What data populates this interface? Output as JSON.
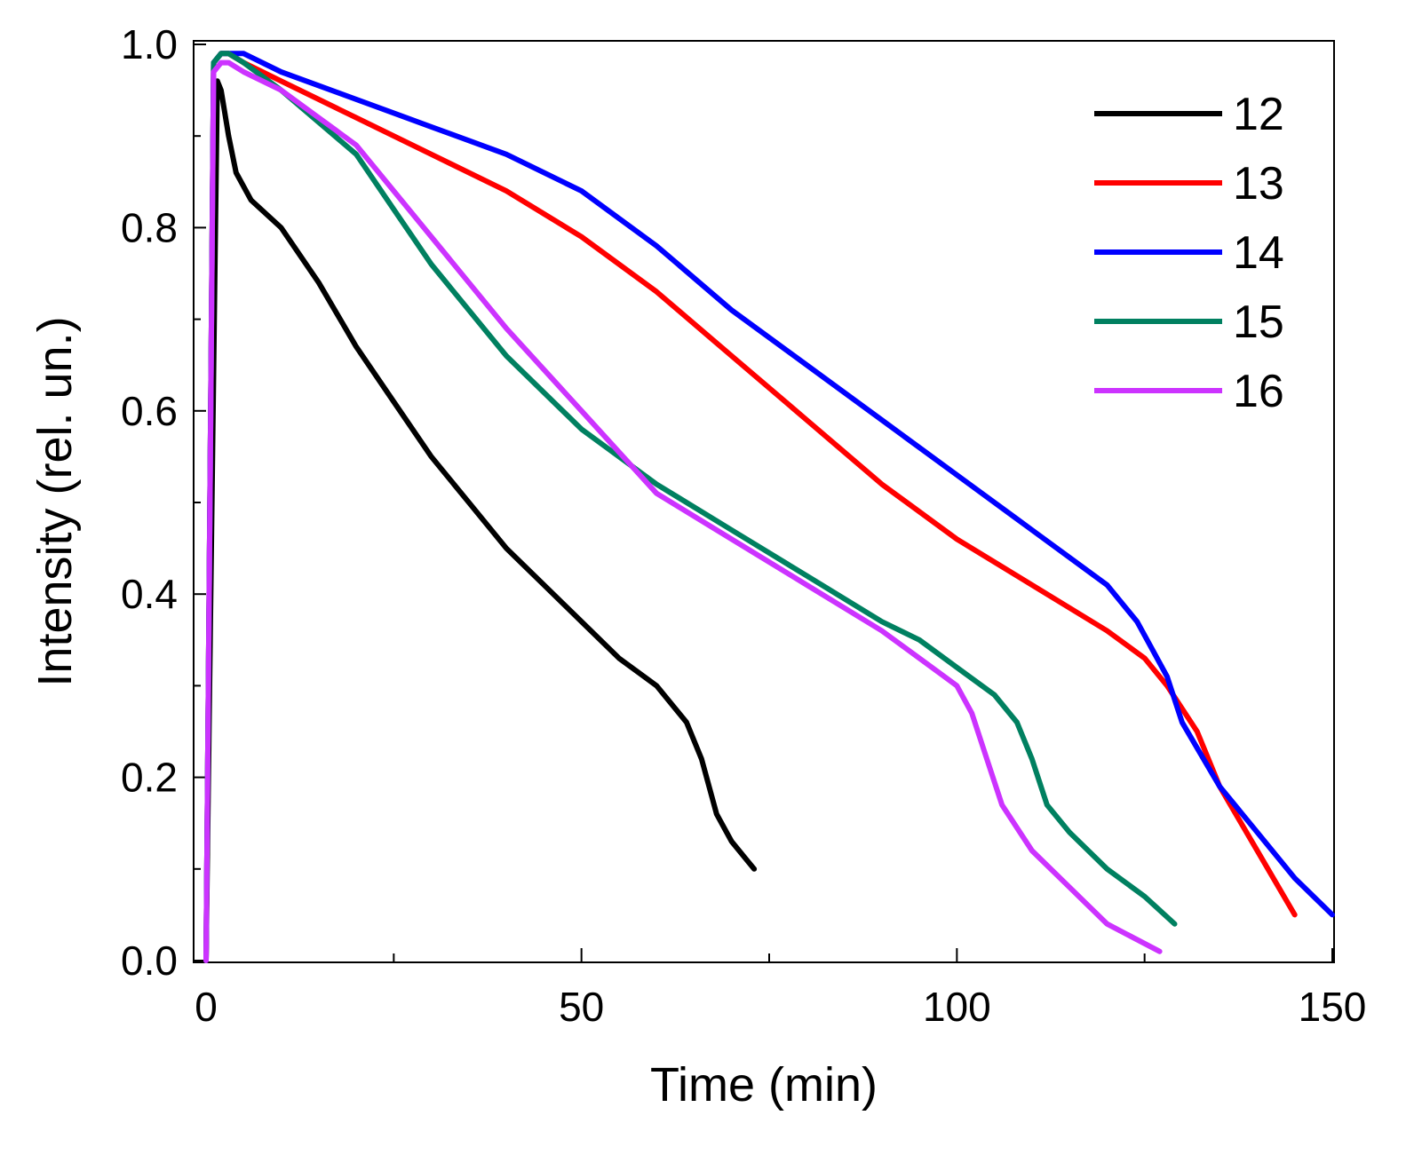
{
  "chart_data": {
    "type": "line",
    "title": "",
    "xlabel": "Time (min)",
    "ylabel": "Intensity (rel. un.)",
    "xlim": [
      0,
      150
    ],
    "ylim": [
      0,
      1.0
    ],
    "x_ticks": [
      0,
      50,
      100,
      150
    ],
    "x_tick_labels": [
      "0",
      "50",
      "100",
      "150"
    ],
    "y_ticks": [
      0.0,
      0.2,
      0.4,
      0.6,
      0.8,
      1.0
    ],
    "y_tick_labels": [
      "0.0",
      "0.2",
      "0.4",
      "0.6",
      "0.8",
      "1.0"
    ],
    "grid": false,
    "legend_position": "top-right",
    "series": [
      {
        "name": "12",
        "color": "#000000",
        "x": [
          0,
          1.5,
          2,
          3,
          4,
          6,
          10,
          15,
          20,
          25,
          30,
          35,
          40,
          45,
          50,
          55,
          60,
          64,
          66,
          68,
          70,
          72,
          73
        ],
        "y": [
          0,
          0.96,
          0.95,
          0.9,
          0.86,
          0.83,
          0.8,
          0.74,
          0.67,
          0.61,
          0.55,
          0.5,
          0.45,
          0.41,
          0.37,
          0.33,
          0.3,
          0.26,
          0.22,
          0.16,
          0.13,
          0.11,
          0.1
        ]
      },
      {
        "name": "13",
        "color": "#ff0000",
        "x": [
          0,
          1,
          2,
          3,
          5,
          10,
          20,
          30,
          40,
          50,
          60,
          70,
          80,
          90,
          100,
          110,
          120,
          125,
          128,
          132,
          135,
          140,
          145
        ],
        "y": [
          0,
          0.98,
          0.99,
          0.99,
          0.98,
          0.96,
          0.92,
          0.88,
          0.84,
          0.79,
          0.73,
          0.66,
          0.59,
          0.52,
          0.46,
          0.41,
          0.36,
          0.33,
          0.3,
          0.25,
          0.19,
          0.12,
          0.05
        ]
      },
      {
        "name": "14",
        "color": "#0000ff",
        "x": [
          0,
          1,
          2,
          3,
          5,
          10,
          20,
          30,
          40,
          50,
          60,
          70,
          80,
          90,
          100,
          110,
          120,
          124,
          126,
          128,
          130,
          135,
          140,
          145,
          150
        ],
        "y": [
          0,
          0.98,
          0.99,
          0.99,
          0.99,
          0.97,
          0.94,
          0.91,
          0.88,
          0.84,
          0.78,
          0.71,
          0.65,
          0.59,
          0.53,
          0.47,
          0.41,
          0.37,
          0.34,
          0.31,
          0.26,
          0.19,
          0.14,
          0.09,
          0.05
        ]
      },
      {
        "name": "15",
        "color": "#008060",
        "x": [
          0,
          1,
          2,
          3,
          5,
          10,
          20,
          25,
          30,
          40,
          50,
          60,
          70,
          80,
          90,
          95,
          100,
          105,
          108,
          110,
          112,
          115,
          120,
          125,
          129
        ],
        "y": [
          0,
          0.98,
          0.99,
          0.99,
          0.98,
          0.95,
          0.88,
          0.82,
          0.76,
          0.66,
          0.58,
          0.52,
          0.47,
          0.42,
          0.37,
          0.35,
          0.32,
          0.29,
          0.26,
          0.22,
          0.17,
          0.14,
          0.1,
          0.07,
          0.04
        ]
      },
      {
        "name": "16",
        "color": "#cc33ff",
        "x": [
          0,
          1,
          2,
          3,
          5,
          10,
          20,
          30,
          40,
          50,
          60,
          70,
          80,
          90,
          95,
          100,
          102,
          104,
          106,
          110,
          115,
          120,
          127
        ],
        "y": [
          0,
          0.97,
          0.98,
          0.98,
          0.97,
          0.95,
          0.89,
          0.79,
          0.69,
          0.6,
          0.51,
          0.46,
          0.41,
          0.36,
          0.33,
          0.3,
          0.27,
          0.22,
          0.17,
          0.12,
          0.08,
          0.04,
          0.01
        ]
      }
    ]
  }
}
